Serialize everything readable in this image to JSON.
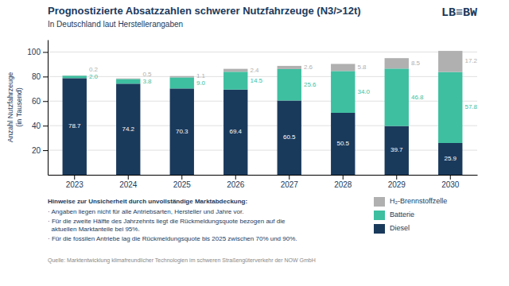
{
  "chart_data": {
    "type": "bar",
    "stacked": true,
    "title": "Prognostizierte Absatzzahlen schwerer Nutzfahrzeuge (N3/>12t)",
    "subtitle": "In Deutschland laut Herstellerangaben",
    "ylabel": "Anzahl Nutzfahrzeuge\n(in Tausend)",
    "categories": [
      "2023",
      "2024",
      "2025",
      "2026",
      "2027",
      "2028",
      "2029",
      "2030"
    ],
    "series": [
      {
        "name": "Diesel",
        "color": "#1a3a5c",
        "values": [
          78.7,
          74.2,
          70.3,
          69.4,
          60.5,
          50.5,
          39.7,
          25.9
        ],
        "value_labels": [
          "78.7",
          "74.2",
          "70.3",
          "69.4",
          "60.5",
          "50.5",
          "39.7",
          "25.9"
        ]
      },
      {
        "name": "Batterie",
        "color": "#3dbfa0",
        "values": [
          2.0,
          3.8,
          9.0,
          14.5,
          25.6,
          34.0,
          46.8,
          57.8
        ],
        "value_labels": [
          "2.0",
          "3.8",
          "9.0",
          "14.5",
          "25.6",
          "34.0",
          "46.8",
          "57.8"
        ]
      },
      {
        "name": "H₂-Brennstoffzelle",
        "color": "#b0b0b0",
        "values": [
          0.2,
          0.5,
          1.1,
          2.4,
          2.6,
          5.8,
          8.5,
          17.2
        ],
        "value_labels": [
          "0.2",
          "0.5",
          "1.1",
          "2.4",
          "2.6",
          "5.8",
          "8.5",
          "17.2"
        ]
      }
    ],
    "ylim": [
      0,
      110
    ],
    "yticks": [
      20,
      40,
      60,
      80,
      100
    ],
    "grid": true,
    "data_labels": true,
    "annotations": [
      "LB≡BW",
      "Hinweise zur Unsicherheit durch unvollständige Marktabdeckung:",
      "· Angaben liegen nicht für alle Antriebsarten, Hersteller und Jahre vor.",
      "· Für die zweite Hälfte des Jahrzehnts liegt die Rückmeldungsquote bezogen auf die\n  aktuellen Marktanteile bei 95%.",
      "· Für die fossilen Antriebe lag die Rückmeldungsquote bis 2025 zwischen 70% und 90%.",
      "Quelle: Marktentwicklung klimafreundlicher Technologien im schweren Straßengüterverkehr der NOW GmbH"
    ]
  }
}
